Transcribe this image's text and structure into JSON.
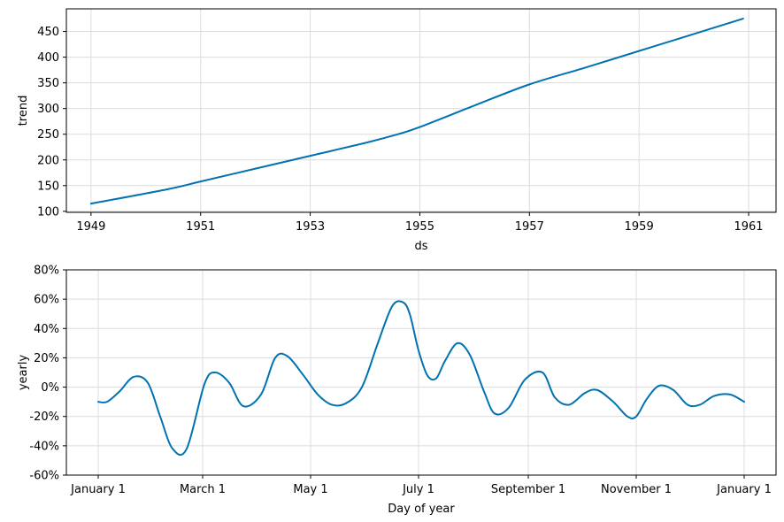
{
  "chart_data": [
    {
      "type": "line",
      "xlabel": "ds",
      "ylabel": "trend",
      "x_tick_labels": [
        "1949",
        "1951",
        "1953",
        "1955",
        "1957",
        "1959",
        "1961"
      ],
      "x_tick_values": [
        1949,
        1951,
        1953,
        1955,
        1957,
        1959,
        1961
      ],
      "y_tick_labels": [
        "100",
        "150",
        "200",
        "250",
        "300",
        "350",
        "400",
        "450"
      ],
      "y_tick_values": [
        100,
        150,
        200,
        250,
        300,
        350,
        400,
        450
      ],
      "xlim": [
        1948.55,
        1961.5
      ],
      "ylim": [
        98,
        494
      ],
      "grid": true,
      "color": "#0072b2",
      "series": [
        {
          "x": [
            1949.0,
            1950.4,
            1951.0,
            1952.0,
            1953.0,
            1954.0,
            1954.6,
            1955.0,
            1956.0,
            1957.0,
            1958.0,
            1959.0,
            1960.0,
            1960.9
          ],
          "values": [
            115,
            143,
            158,
            183,
            208,
            233,
            250,
            264,
            306,
            347,
            379,
            412,
            445,
            475
          ]
        }
      ]
    },
    {
      "type": "line",
      "xlabel": "Day of year",
      "ylabel": "yearly",
      "x_tick_labels": [
        "January 1",
        "March 1",
        "May 1",
        "July 1",
        "September 1",
        "November 1",
        "January 1"
      ],
      "x_tick_values": [
        0,
        59,
        120,
        181,
        243,
        304,
        365
      ],
      "y_tick_labels": [
        "-60%",
        "-40%",
        "-20%",
        "0%",
        "20%",
        "40%",
        "60%",
        "80%"
      ],
      "y_tick_values": [
        -60,
        -40,
        -20,
        0,
        20,
        40,
        60,
        80
      ],
      "xlim": [
        -18,
        383
      ],
      "ylim": [
        -60,
        80
      ],
      "grid": true,
      "color": "#0072b2",
      "series": [
        {
          "x": [
            0,
            5,
            12,
            20,
            28,
            35,
            42,
            50,
            60,
            66,
            74,
            82,
            92,
            100,
            107,
            116,
            124,
            132,
            140,
            149,
            158,
            166,
            172,
            176,
            181,
            186,
            191,
            196,
            203,
            210,
            218,
            224,
            232,
            241,
            251,
            258,
            266,
            275,
            282,
            291,
            299,
            304,
            310,
            317,
            325,
            333,
            340,
            348,
            357,
            365
          ],
          "values": [
            -10,
            -10,
            -3,
            7,
            3,
            -20,
            -42,
            -42,
            2,
            10,
            3,
            -13,
            -5,
            20,
            21,
            8,
            -5,
            -12,
            -11,
            0,
            30,
            55,
            58,
            50,
            25,
            8,
            6,
            18,
            30,
            22,
            -3,
            -18,
            -14,
            5,
            10,
            -7,
            -12,
            -4,
            -2,
            -10,
            -20,
            -20,
            -8,
            1,
            -2,
            -12,
            -12,
            -6,
            -5,
            -10
          ]
        }
      ]
    }
  ]
}
